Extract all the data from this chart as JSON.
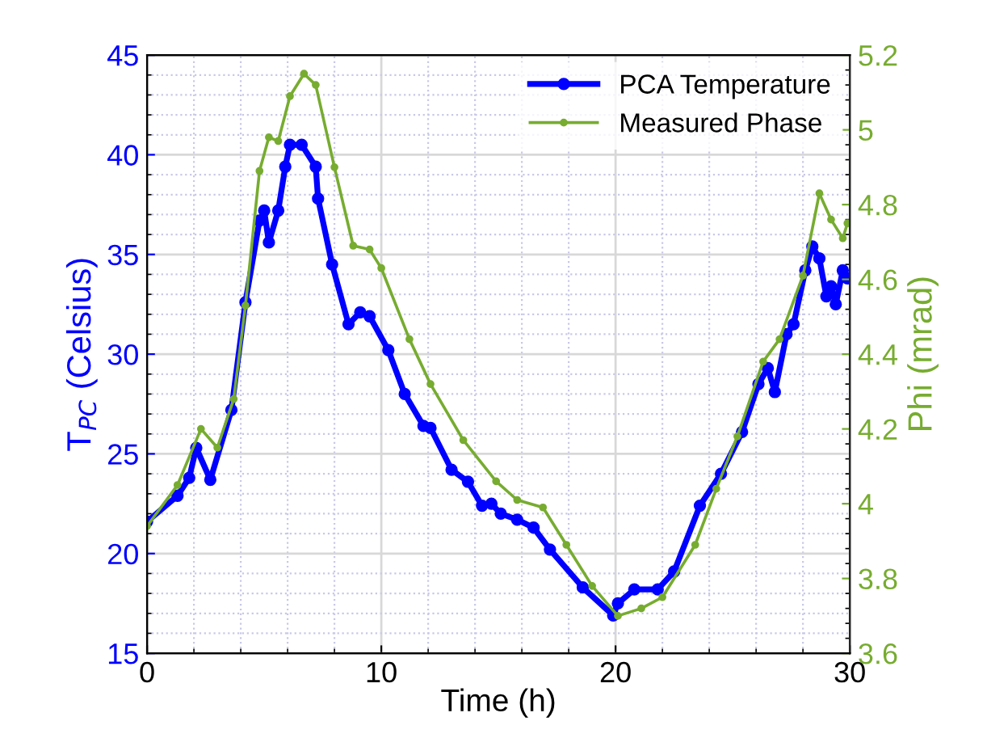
{
  "chart_data": {
    "type": "line",
    "xlabel": "Time (h)",
    "ylabel": "T$_{PC}$ (Celsius)",
    "y2label": "Phi (mrad)",
    "xlim": [
      0,
      30
    ],
    "xticks": [
      0,
      10,
      20,
      30
    ],
    "ylim": [
      15,
      45
    ],
    "yticks": [
      15,
      20,
      25,
      30,
      35,
      40,
      45
    ],
    "y2lim": [
      3.6,
      5.2
    ],
    "y2ticks": [
      3.6,
      3.8,
      4,
      4.2,
      4.4,
      4.6,
      4.8,
      5,
      5.2
    ],
    "grid": true,
    "legend": "top right",
    "marker": "circle",
    "line_style": "solid",
    "series": [
      {
        "name": "PCA Temperature",
        "color": "#0000ff",
        "x": [
          0,
          1.3,
          1.8,
          2.1,
          2.7,
          3.6,
          4.2,
          4.8,
          5.0,
          5.2,
          5.6,
          5.9,
          6.1,
          6.6,
          7.2,
          7.3,
          7.9,
          8.6,
          9.1,
          9.5,
          10.3,
          11.0,
          11.8,
          12.1,
          13.0,
          13.7,
          14.3,
          14.7,
          15.1,
          15.8,
          16.5,
          17.2,
          18.6,
          19.9,
          20.1,
          20.8,
          21.8,
          22.5,
          23.6,
          24.5,
          25.4,
          26.1,
          26.5,
          26.8,
          27.3,
          27.6,
          28.1,
          28.4,
          28.7,
          29.0,
          29.2,
          29.4,
          29.7,
          29.9
        ],
        "values": [
          21.6,
          22.9,
          23.8,
          25.3,
          23.7,
          27.2,
          32.6,
          36.7,
          37.2,
          35.6,
          37.2,
          39.4,
          40.5,
          40.5,
          39.4,
          37.8,
          34.5,
          31.5,
          32.1,
          31.9,
          30.2,
          28.0,
          26.4,
          26.3,
          24.2,
          23.6,
          22.4,
          22.5,
          22.0,
          21.7,
          21.3,
          20.2,
          18.3,
          16.9,
          17.5,
          18.2,
          18.2,
          19.1,
          22.4,
          24.0,
          26.1,
          28.5,
          29.3,
          28.1,
          31.0,
          31.5,
          34.2,
          35.4,
          34.8,
          32.9,
          33.4,
          32.5,
          34.2,
          33.8
        ]
      },
      {
        "name": "Measured Phase",
        "color": "#77ac30",
        "axis": "y2",
        "x": [
          0,
          1.3,
          2.3,
          3.0,
          3.7,
          4.2,
          4.8,
          5.2,
          5.6,
          6.1,
          6.7,
          7.2,
          8.0,
          8.8,
          9.5,
          10.0,
          11.2,
          12.1,
          13.5,
          14.9,
          15.8,
          16.9,
          17.9,
          19.0,
          20.1,
          21.1,
          22.0,
          23.4,
          24.3,
          25.2,
          26.3,
          27.0,
          28.0,
          28.7,
          29.2,
          29.7,
          29.9
        ],
        "values": [
          3.94,
          4.05,
          4.2,
          4.15,
          4.28,
          4.53,
          4.89,
          4.98,
          4.97,
          5.09,
          5.15,
          5.12,
          4.9,
          4.69,
          4.68,
          4.63,
          4.44,
          4.32,
          4.17,
          4.06,
          4.01,
          3.99,
          3.89,
          3.78,
          3.7,
          3.72,
          3.75,
          3.89,
          4.04,
          4.18,
          4.38,
          4.44,
          4.61,
          4.83,
          4.76,
          4.71,
          4.75
        ]
      }
    ]
  }
}
